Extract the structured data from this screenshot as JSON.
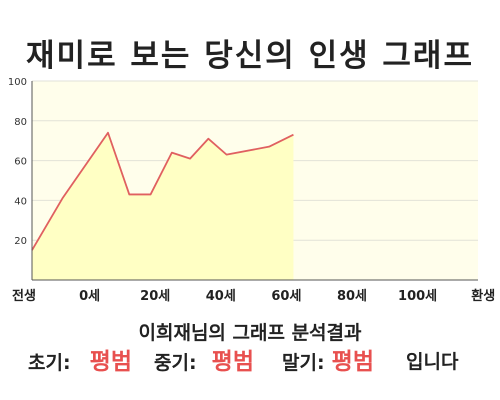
{
  "title": "재미로 보는 당신의 인생 그래프",
  "chart_data": {
    "type": "area",
    "x_labels": [
      "전생",
      "0세",
      "20세",
      "40세",
      "60세",
      "80세",
      "100세",
      "환생"
    ],
    "y_ticks": [
      20,
      40,
      60,
      80,
      100
    ],
    "ylim": [
      0,
      100
    ],
    "grid": true,
    "points": [
      {
        "x": 0,
        "y": 15
      },
      {
        "x": 0.5,
        "y": 41
      },
      {
        "x": 1.25,
        "y": 74
      },
      {
        "x": 1.6,
        "y": 43
      },
      {
        "x": 1.95,
        "y": 43
      },
      {
        "x": 2.3,
        "y": 64
      },
      {
        "x": 2.6,
        "y": 61
      },
      {
        "x": 2.9,
        "y": 71
      },
      {
        "x": 3.2,
        "y": 63
      },
      {
        "x": 3.9,
        "y": 67
      },
      {
        "x": 4.3,
        "y": 73
      }
    ],
    "line_color": "#e06060",
    "fill_color": "#ffffc4",
    "plot_bg": "#fffeeb"
  },
  "result": {
    "title": "이희재님의 그래프 분석결과",
    "early_label": "초기:",
    "early_value": "평범",
    "mid_label": "중기:",
    "mid_value": "평범",
    "late_label": "말기:",
    "late_value": "평범",
    "suffix": "입니다",
    "value_color": "#e8504f"
  }
}
